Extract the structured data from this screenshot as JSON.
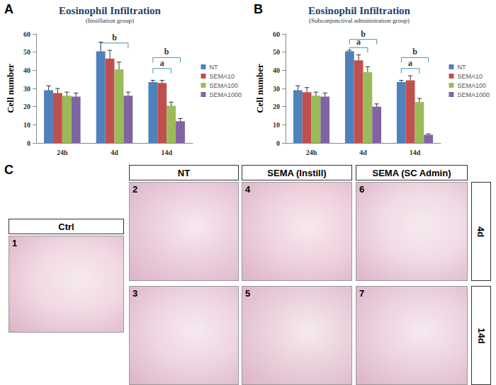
{
  "chart_data": [
    {
      "type": "bar",
      "title": "Eosinophil Infiltration",
      "subtitle": "(Instillation group)",
      "y_label": "Cell number",
      "categories": [
        "24h",
        "4d",
        "14d"
      ],
      "series": [
        {
          "name": "NT",
          "color": "#4f81bd",
          "values": [
            29,
            50.5,
            33.5
          ],
          "errors": [
            2.5,
            5,
            1
          ]
        },
        {
          "name": "SEMA10",
          "color": "#c0504d",
          "values": [
            27.5,
            46.5,
            33
          ],
          "errors": [
            2.5,
            4.5,
            1.5
          ]
        },
        {
          "name": "SEMA100",
          "color": "#9bbb59",
          "values": [
            26,
            40.5,
            20.5
          ],
          "errors": [
            2,
            4,
            2
          ]
        },
        {
          "name": "SEMA1000",
          "color": "#8064a2",
          "values": [
            25.5,
            26,
            12
          ],
          "errors": [
            2,
            2,
            1.5
          ]
        }
      ],
      "ylim": [
        0,
        60
      ],
      "yticks": [
        0,
        10,
        20,
        30,
        40,
        50,
        60
      ],
      "grid": false,
      "legend": "right",
      "annotations": [
        {
          "text": "A"
        },
        {
          "text": "b",
          "category": "4d",
          "from": "NT",
          "to": "SEMA1000",
          "y": 55
        },
        {
          "text": "a",
          "category": "14d",
          "from": "NT",
          "to": "SEMA100",
          "y": 41
        },
        {
          "text": "b",
          "category": "14d",
          "from": "NT",
          "to": "SEMA1000",
          "y": 47
        }
      ]
    },
    {
      "type": "bar",
      "title": "Eosinophil Infiltration",
      "subtitle": "(Subconjunctival administration group)",
      "y_label": "Cell number",
      "categories": [
        "24h",
        "4d",
        "14d"
      ],
      "series": [
        {
          "name": "NT",
          "color": "#4f81bd",
          "values": [
            29,
            50.5,
            33.5
          ],
          "errors": [
            2.5,
            0.5,
            1
          ]
        },
        {
          "name": "SEMA10",
          "color": "#c0504d",
          "values": [
            28,
            45.5,
            34.5
          ],
          "errors": [
            2.5,
            3,
            2.5
          ]
        },
        {
          "name": "SEMA100",
          "color": "#9bbb59",
          "values": [
            26,
            39,
            22.5
          ],
          "errors": [
            2,
            3,
            2
          ]
        },
        {
          "name": "SEMA1000",
          "color": "#8064a2",
          "values": [
            25.5,
            20,
            4.5
          ],
          "errors": [
            2,
            1.5,
            0.5
          ]
        }
      ],
      "ylim": [
        0,
        60
      ],
      "yticks": [
        0,
        10,
        20,
        30,
        40,
        50,
        60
      ],
      "grid": false,
      "legend": "right",
      "annotations": [
        {
          "text": "B"
        },
        {
          "text": "a",
          "category": "4d",
          "from": "NT",
          "to": "SEMA100",
          "y": 52.5
        },
        {
          "text": "b",
          "category": "4d",
          "from": "NT",
          "to": "SEMA1000",
          "y": 57
        },
        {
          "text": "a",
          "category": "14d",
          "from": "NT",
          "to": "SEMA100",
          "y": 41
        },
        {
          "text": "b",
          "category": "14d",
          "from": "NT",
          "to": "SEMA1000",
          "y": 47
        }
      ]
    }
  ],
  "panel_c": {
    "label": "C",
    "rows": [
      "4d",
      "14d"
    ],
    "columns": [
      {
        "title": "Ctrl",
        "images": [
          1
        ]
      },
      {
        "title": "NT",
        "images": [
          2,
          3
        ]
      },
      {
        "title": "SEMA (Instill)",
        "images": [
          4,
          5
        ]
      },
      {
        "title": "SEMA (SC Admin)",
        "images": [
          6,
          7
        ]
      }
    ]
  }
}
